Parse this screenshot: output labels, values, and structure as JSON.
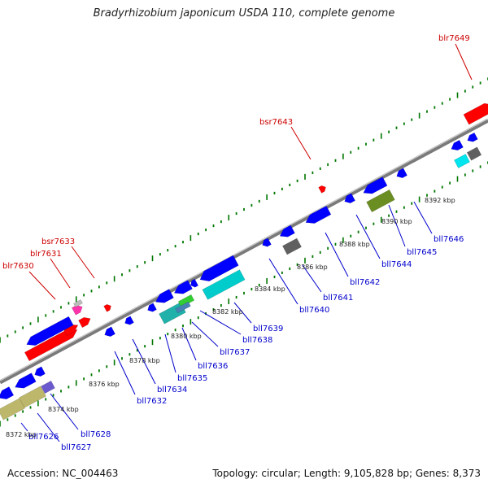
{
  "title": "Bradyrhizobium japonicum USDA 110, complete genome",
  "footer": {
    "accession": "Accession: NC_004463",
    "summary": "Topology: circular; Length: 9,105,828 bp; Genes: 8,373"
  },
  "colors": {
    "forward_gene": "#ff0000",
    "reverse_gene": "#0000ff",
    "forward_label": "#cc0000",
    "reverse_label": "#0000cc",
    "ticks": "#007700",
    "backbone": "#808080"
  },
  "scale_labels": [
    "8372 kbp",
    "8374 kbp",
    "8376 kbp",
    "8378 kbp",
    "8380 kbp",
    "8382 kbp",
    "8384 kbp",
    "8386 kbp",
    "8388 kbp",
    "8390 kbp",
    "8392 kbp"
  ],
  "forward_gene_labels": [
    "blr7630",
    "blr7631",
    "bsr7633",
    "bsr7643",
    "blr7649"
  ],
  "reverse_gene_labels": [
    "bll7626",
    "bll7627",
    "bll7628",
    "bll7632",
    "bll7634",
    "bll7635",
    "bll7636",
    "bll7637",
    "bll7638",
    "bll7639",
    "bll7640",
    "bll7641",
    "bll7642",
    "bll7644",
    "bll7645",
    "bll7646"
  ]
}
